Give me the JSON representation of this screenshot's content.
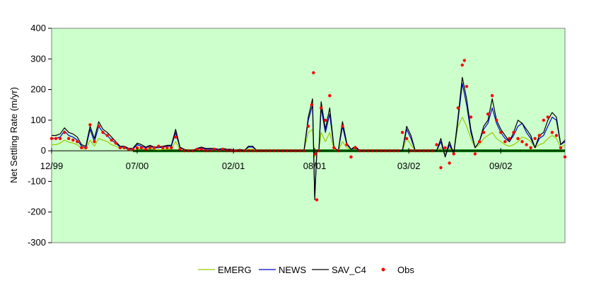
{
  "chart_data": {
    "type": "line",
    "title": "",
    "xlabel": "",
    "ylabel": "Net Settling Rate (m/yr)",
    "ylim": [
      -300,
      400
    ],
    "yticks": [
      -300,
      -200,
      -100,
      0,
      100,
      200,
      300,
      400
    ],
    "xlim": [
      0,
      1200
    ],
    "xticks": [
      {
        "x": 0,
        "label": "12/99"
      },
      {
        "x": 200,
        "label": "07/00"
      },
      {
        "x": 425,
        "label": "02/01"
      },
      {
        "x": 615,
        "label": "08/01"
      },
      {
        "x": 835,
        "label": "03/02"
      },
      {
        "x": 1050,
        "label": "09/02"
      }
    ],
    "grid": false,
    "legend_position": "bottom",
    "colors": {
      "plot_bg": "#ccffcc",
      "EMERG": "#99cc00",
      "NEWS": "#0000cc",
      "SAV_C4": "#000000",
      "Obs": "#ff0000",
      "zero_line": "#008000"
    },
    "baseline": {
      "from": 190,
      "to": 1200,
      "value": 0
    },
    "series": [
      {
        "name": "EMERG",
        "type": "line",
        "x": [
          0,
          10,
          20,
          30,
          40,
          50,
          60,
          70,
          80,
          90,
          100,
          110,
          120,
          130,
          140,
          150,
          160,
          170,
          180,
          190,
          200,
          210,
          220,
          230,
          240,
          250,
          260,
          270,
          280,
          290,
          300,
          310,
          320,
          330,
          340,
          350,
          360,
          370,
          380,
          390,
          400,
          410,
          420,
          430,
          440,
          450,
          460,
          470,
          480,
          490,
          500,
          510,
          520,
          530,
          540,
          550,
          560,
          570,
          580,
          590,
          600,
          610,
          615,
          620,
          625,
          630,
          640,
          650,
          660,
          670,
          680,
          690,
          700,
          710,
          720,
          730,
          740,
          750,
          760,
          770,
          780,
          790,
          800,
          810,
          820,
          830,
          840,
          850,
          860,
          870,
          880,
          890,
          900,
          910,
          920,
          930,
          940,
          950,
          960,
          970,
          980,
          990,
          1000,
          1010,
          1020,
          1030,
          1040,
          1050,
          1060,
          1070,
          1080,
          1090,
          1100,
          1110,
          1120,
          1130,
          1140,
          1150,
          1160,
          1170,
          1180,
          1190,
          1200
        ],
        "y": [
          20,
          20,
          25,
          35,
          28,
          25,
          20,
          8,
          5,
          35,
          15,
          40,
          35,
          30,
          20,
          15,
          8,
          8,
          3,
          3,
          5,
          8,
          5,
          10,
          5,
          3,
          5,
          5,
          6,
          30,
          5,
          2,
          0,
          0,
          2,
          5,
          3,
          3,
          3,
          2,
          3,
          2,
          2,
          0,
          2,
          0,
          5,
          5,
          0,
          0,
          0,
          0,
          0,
          0,
          0,
          0,
          0,
          0,
          0,
          0,
          60,
          70,
          -20,
          0,
          5,
          60,
          30,
          60,
          5,
          0,
          30,
          10,
          5,
          8,
          0,
          0,
          0,
          0,
          0,
          0,
          0,
          0,
          0,
          0,
          0,
          40,
          20,
          0,
          0,
          0,
          0,
          0,
          0,
          10,
          -10,
          10,
          -5,
          80,
          110,
          80,
          40,
          10,
          20,
          40,
          50,
          60,
          40,
          30,
          20,
          15,
          20,
          30,
          45,
          40,
          30,
          10,
          20,
          25,
          40,
          50,
          40,
          10,
          20
        ]
      },
      {
        "name": "NEWS",
        "type": "line",
        "x": [
          0,
          10,
          20,
          30,
          40,
          50,
          60,
          70,
          80,
          90,
          100,
          110,
          120,
          130,
          140,
          150,
          160,
          170,
          180,
          190,
          200,
          210,
          220,
          230,
          240,
          250,
          260,
          270,
          280,
          290,
          300,
          310,
          320,
          330,
          340,
          350,
          360,
          370,
          380,
          390,
          400,
          410,
          420,
          430,
          440,
          450,
          460,
          470,
          480,
          490,
          500,
          510,
          520,
          530,
          540,
          550,
          560,
          570,
          580,
          590,
          600,
          610,
          615,
          620,
          625,
          630,
          640,
          650,
          660,
          670,
          680,
          690,
          700,
          710,
          720,
          730,
          740,
          750,
          760,
          770,
          780,
          790,
          800,
          810,
          820,
          830,
          840,
          850,
          860,
          870,
          880,
          890,
          900,
          910,
          920,
          930,
          940,
          950,
          960,
          970,
          980,
          990,
          1000,
          1010,
          1020,
          1030,
          1040,
          1050,
          1060,
          1070,
          1080,
          1090,
          1100,
          1110,
          1120,
          1130,
          1140,
          1150,
          1160,
          1170,
          1180,
          1190,
          1200
        ],
        "y": [
          40,
          40,
          45,
          65,
          50,
          45,
          35,
          15,
          10,
          70,
          30,
          80,
          60,
          50,
          35,
          25,
          12,
          12,
          5,
          5,
          20,
          15,
          10,
          15,
          10,
          10,
          12,
          15,
          15,
          60,
          10,
          4,
          0,
          0,
          5,
          10,
          5,
          5,
          5,
          3,
          5,
          3,
          3,
          0,
          3,
          0,
          12,
          12,
          0,
          0,
          0,
          0,
          0,
          0,
          0,
          0,
          0,
          0,
          0,
          0,
          100,
          150,
          -150,
          0,
          5,
          140,
          60,
          120,
          10,
          0,
          80,
          20,
          5,
          10,
          0,
          0,
          0,
          0,
          0,
          0,
          0,
          0,
          0,
          0,
          0,
          70,
          40,
          0,
          0,
          0,
          0,
          0,
          0,
          30,
          -20,
          20,
          -10,
          100,
          220,
          150,
          60,
          10,
          30,
          70,
          90,
          140,
          90,
          60,
          40,
          30,
          50,
          80,
          90,
          60,
          40,
          10,
          40,
          50,
          80,
          110,
          100,
          20,
          30
        ]
      },
      {
        "name": "SAV_C4",
        "type": "line",
        "x": [
          0,
          10,
          20,
          30,
          40,
          50,
          60,
          70,
          80,
          90,
          100,
          110,
          120,
          130,
          140,
          150,
          160,
          170,
          180,
          190,
          200,
          210,
          220,
          230,
          240,
          250,
          260,
          270,
          280,
          290,
          300,
          310,
          320,
          330,
          340,
          350,
          360,
          370,
          380,
          390,
          400,
          410,
          420,
          430,
          440,
          450,
          460,
          470,
          480,
          490,
          500,
          510,
          520,
          530,
          540,
          550,
          560,
          570,
          580,
          590,
          600,
          610,
          615,
          620,
          625,
          630,
          640,
          650,
          660,
          670,
          680,
          690,
          700,
          710,
          720,
          730,
          740,
          750,
          760,
          770,
          780,
          790,
          800,
          810,
          820,
          830,
          840,
          850,
          860,
          870,
          880,
          890,
          900,
          910,
          920,
          930,
          940,
          950,
          960,
          970,
          980,
          990,
          1000,
          1010,
          1020,
          1030,
          1040,
          1050,
          1060,
          1070,
          1080,
          1090,
          1100,
          1110,
          1120,
          1130,
          1140,
          1150,
          1160,
          1170,
          1180,
          1190,
          1200
        ],
        "y": [
          50,
          50,
          55,
          75,
          60,
          55,
          45,
          20,
          15,
          80,
          40,
          95,
          70,
          60,
          45,
          30,
          15,
          15,
          8,
          8,
          25,
          20,
          12,
          18,
          12,
          12,
          15,
          18,
          18,
          70,
          12,
          5,
          0,
          0,
          8,
          12,
          8,
          8,
          8,
          5,
          8,
          5,
          5,
          0,
          5,
          0,
          15,
          15,
          0,
          0,
          0,
          0,
          0,
          0,
          0,
          0,
          0,
          0,
          0,
          0,
          110,
          170,
          -160,
          0,
          5,
          160,
          70,
          140,
          10,
          0,
          95,
          25,
          5,
          15,
          0,
          0,
          0,
          0,
          0,
          0,
          0,
          0,
          0,
          0,
          0,
          80,
          50,
          0,
          0,
          0,
          0,
          0,
          0,
          40,
          -20,
          30,
          -10,
          110,
          240,
          170,
          70,
          10,
          30,
          80,
          100,
          170,
          100,
          70,
          50,
          30,
          60,
          100,
          90,
          70,
          50,
          10,
          50,
          60,
          100,
          125,
          110,
          20,
          35
        ]
      },
      {
        "name": "Obs",
        "type": "scatter",
        "x": [
          0,
          10,
          20,
          30,
          40,
          50,
          60,
          70,
          80,
          90,
          100,
          110,
          120,
          130,
          140,
          150,
          160,
          170,
          180,
          190,
          200,
          210,
          220,
          230,
          240,
          250,
          260,
          270,
          280,
          290,
          300,
          310,
          320,
          330,
          340,
          350,
          360,
          370,
          380,
          390,
          400,
          410,
          420,
          430,
          440,
          450,
          460,
          470,
          480,
          490,
          500,
          510,
          520,
          530,
          540,
          550,
          560,
          570,
          580,
          590,
          600,
          608,
          612,
          616,
          620,
          625,
          630,
          640,
          650,
          660,
          670,
          680,
          690,
          700,
          710,
          720,
          730,
          740,
          750,
          760,
          770,
          780,
          790,
          800,
          810,
          820,
          830,
          840,
          850,
          860,
          870,
          880,
          890,
          900,
          910,
          920,
          930,
          940,
          950,
          960,
          965,
          970,
          980,
          990,
          1000,
          1010,
          1020,
          1030,
          1040,
          1050,
          1060,
          1070,
          1080,
          1090,
          1100,
          1110,
          1120,
          1130,
          1140,
          1150,
          1160,
          1170,
          1180,
          1190,
          1200
        ],
        "y": [
          40,
          40,
          40,
          60,
          40,
          35,
          30,
          10,
          10,
          85,
          30,
          80,
          60,
          50,
          35,
          25,
          10,
          10,
          5,
          5,
          10,
          10,
          5,
          10,
          10,
          15,
          10,
          10,
          10,
          45,
          5,
          0,
          0,
          0,
          5,
          5,
          0,
          0,
          5,
          0,
          5,
          0,
          0,
          0,
          0,
          0,
          0,
          0,
          0,
          0,
          0,
          0,
          0,
          0,
          0,
          0,
          0,
          0,
          0,
          0,
          80,
          150,
          255,
          -10,
          -160,
          0,
          140,
          100,
          180,
          10,
          0,
          80,
          20,
          -20,
          10,
          0,
          0,
          0,
          0,
          0,
          0,
          0,
          0,
          0,
          0,
          60,
          40,
          0,
          0,
          0,
          0,
          0,
          0,
          20,
          -55,
          10,
          -40,
          -10,
          140,
          280,
          295,
          210,
          110,
          -10,
          30,
          60,
          120,
          180,
          100,
          60,
          30,
          40,
          60,
          40,
          30,
          20,
          10,
          40,
          50,
          100,
          110,
          60,
          50,
          10,
          -20
        ]
      }
    ]
  },
  "legend": [
    {
      "label": "EMERG",
      "kind": "line",
      "color": "#99cc00"
    },
    {
      "label": "NEWS",
      "kind": "line",
      "color": "#0000cc"
    },
    {
      "label": "SAV_C4",
      "kind": "line",
      "color": "#000000"
    },
    {
      "label": "Obs",
      "kind": "marker",
      "color": "#ff0000"
    }
  ]
}
